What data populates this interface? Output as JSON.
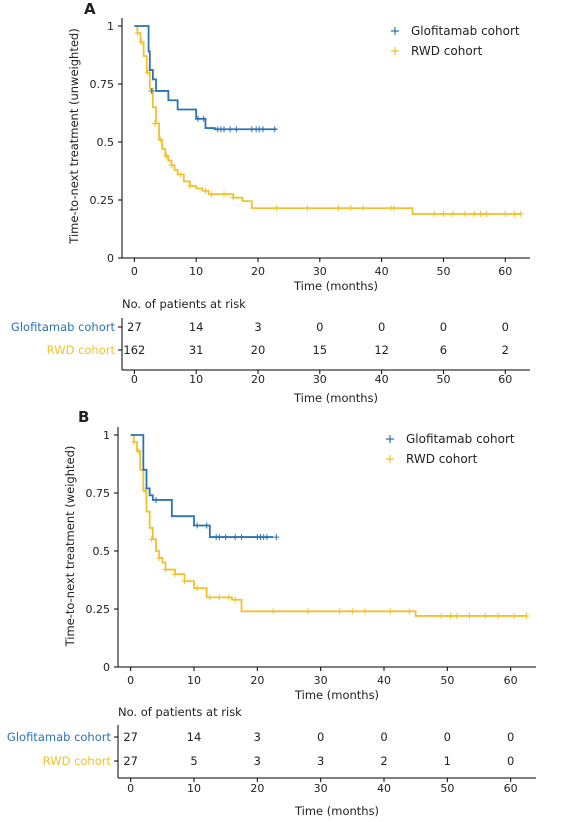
{
  "colors": {
    "glofitamab": "#2a73b5",
    "rwd": "#f2c12e",
    "axis": "#000000"
  },
  "chart_data": [
    {
      "type": "line",
      "panel_label": "A",
      "ylabel": "Time-to-next treatment (unweighted)",
      "xlabel": "Time (months)",
      "xlim": [
        -2,
        64
      ],
      "ylim": [
        0,
        1
      ],
      "x_ticks": [
        0,
        10,
        20,
        30,
        40,
        50,
        60
      ],
      "y_ticks": [
        0,
        0.25,
        0.5,
        0.75,
        1
      ],
      "y_tick_labels": [
        "0",
        "0.25",
        "0.5",
        "0.75",
        "1"
      ],
      "legend_position": "top-right",
      "series": [
        {
          "name": "Glofitamab cohort",
          "color": "#2a73b5",
          "x": [
            0,
            1.0,
            2.3,
            2.5,
            3.0,
            3.5,
            5.5,
            7.0,
            10.0,
            11.5,
            13.0,
            23.0
          ],
          "y": [
            1,
            1,
            0.89,
            0.81,
            0.77,
            0.72,
            0.68,
            0.64,
            0.6,
            0.56,
            0.555,
            0.555
          ],
          "censor_x": [
            2.8,
            10.3,
            11.2,
            13.5,
            14.0,
            14.5,
            15.5,
            16.5,
            19.0,
            19.7,
            20.2,
            20.8,
            22.7
          ],
          "censor_y": [
            0.72,
            0.6,
            0.6,
            0.555,
            0.555,
            0.555,
            0.555,
            0.555,
            0.555,
            0.555,
            0.555,
            0.555,
            0.555
          ]
        },
        {
          "name": "RWD cohort",
          "color": "#f2c12e",
          "x": [
            0,
            0.5,
            1.0,
            1.5,
            2.0,
            2.5,
            3.0,
            3.5,
            4.0,
            4.5,
            5.0,
            5.5,
            6.0,
            6.5,
            7.0,
            8.0,
            9.0,
            10.0,
            11.0,
            12.0,
            16.0,
            17.5,
            19.0,
            45.0,
            62.5
          ],
          "y": [
            1,
            0.97,
            0.93,
            0.87,
            0.8,
            0.73,
            0.65,
            0.58,
            0.51,
            0.47,
            0.44,
            0.42,
            0.4,
            0.38,
            0.36,
            0.33,
            0.31,
            0.3,
            0.29,
            0.275,
            0.26,
            0.245,
            0.215,
            0.19,
            0.19
          ],
          "censor_x": [
            0.5,
            1.2,
            2.2,
            3.3,
            4.2,
            5.2,
            6.0,
            7.5,
            9.0,
            11.5,
            12.5,
            14.5,
            16.0,
            23.0,
            28.0,
            33.0,
            35.0,
            37.0,
            41.5,
            42.0,
            48.5,
            50.0,
            51.5,
            53.5,
            55.0,
            56.0,
            57.0,
            60.0,
            61.5,
            62.5
          ],
          "censor_y": [
            0.97,
            0.93,
            0.8,
            0.58,
            0.51,
            0.44,
            0.4,
            0.36,
            0.31,
            0.29,
            0.275,
            0.275,
            0.26,
            0.215,
            0.215,
            0.215,
            0.215,
            0.215,
            0.215,
            0.215,
            0.19,
            0.19,
            0.19,
            0.19,
            0.19,
            0.19,
            0.19,
            0.19,
            0.19,
            0.19
          ]
        }
      ],
      "risk_table": {
        "title": "No. of patients at risk",
        "xlabel": "Time (months)",
        "times": [
          0,
          10,
          20,
          30,
          40,
          50,
          60
        ],
        "rows": [
          {
            "label": "Glofitamab cohort",
            "color": "#2a73b5",
            "values": [
              "27",
              "14",
              "3",
              "0",
              "0",
              "0",
              "0"
            ]
          },
          {
            "label": "RWD cohort",
            "color": "#f2c12e",
            "values": [
              "162",
              "31",
              "20",
              "15",
              "12",
              "6",
              "2"
            ]
          }
        ]
      }
    },
    {
      "type": "line",
      "panel_label": "B",
      "ylabel": "Time-to-next treatment (weighted)",
      "xlabel": "Time (months)",
      "xlim": [
        -2,
        64
      ],
      "ylim": [
        0,
        1
      ],
      "x_ticks": [
        0,
        10,
        20,
        30,
        40,
        50,
        60
      ],
      "y_ticks": [
        0,
        0.25,
        0.5,
        0.75,
        1
      ],
      "y_tick_labels": [
        "0",
        "0.25",
        "0.5",
        "0.75",
        "1"
      ],
      "legend_position": "top-right",
      "series": [
        {
          "name": "Glofitamab cohort",
          "color": "#2a73b5",
          "x": [
            0,
            1.3,
            2.0,
            2.5,
            3.0,
            3.5,
            6.5,
            10.0,
            12.5,
            22.5
          ],
          "y": [
            1,
            1,
            0.85,
            0.77,
            0.74,
            0.72,
            0.65,
            0.61,
            0.56,
            0.56
          ],
          "censor_x": [
            4.0,
            10.5,
            12.0,
            13.5,
            14.0,
            15.0,
            16.5,
            17.5,
            20.0,
            20.5,
            21.0,
            21.5,
            23.0
          ],
          "censor_y": [
            0.72,
            0.61,
            0.61,
            0.56,
            0.56,
            0.56,
            0.56,
            0.56,
            0.56,
            0.56,
            0.56,
            0.56,
            0.56
          ]
        },
        {
          "name": "RWD cohort",
          "color": "#f2c12e",
          "x": [
            0,
            0.5,
            1.0,
            1.5,
            2.0,
            2.5,
            3.0,
            3.5,
            4.0,
            4.5,
            5.0,
            5.5,
            7.0,
            8.5,
            10.0,
            12.0,
            16.0,
            17.5,
            45.0,
            62.5
          ],
          "y": [
            1,
            0.97,
            0.93,
            0.85,
            0.76,
            0.67,
            0.6,
            0.55,
            0.5,
            0.47,
            0.45,
            0.42,
            0.4,
            0.37,
            0.34,
            0.3,
            0.29,
            0.24,
            0.22,
            0.22
          ],
          "censor_x": [
            0.5,
            1.3,
            2.3,
            3.3,
            4.5,
            5.5,
            7.0,
            8.5,
            10.5,
            12.5,
            14.0,
            15.5,
            16.5,
            22.5,
            28.0,
            33.0,
            35.0,
            37.0,
            41.0,
            44.0,
            49.0,
            50.5,
            51.5,
            53.5,
            56.0,
            58.0,
            60.5,
            62.5
          ],
          "censor_y": [
            0.97,
            0.93,
            0.76,
            0.55,
            0.47,
            0.42,
            0.4,
            0.37,
            0.34,
            0.3,
            0.3,
            0.3,
            0.29,
            0.24,
            0.24,
            0.24,
            0.24,
            0.24,
            0.24,
            0.24,
            0.22,
            0.22,
            0.22,
            0.22,
            0.22,
            0.22,
            0.22,
            0.22
          ]
        }
      ],
      "risk_table": {
        "title": "No. of patients at risk",
        "xlabel": "Time (months)",
        "times": [
          0,
          10,
          20,
          30,
          40,
          50,
          60
        ],
        "rows": [
          {
            "label": "Glofitamab cohort",
            "color": "#2a73b5",
            "values": [
              "27",
              "14",
              "3",
              "0",
              "0",
              "0",
              "0"
            ]
          },
          {
            "label": "RWD cohort",
            "color": "#f2c12e",
            "values": [
              "27",
              "5",
              "3",
              "3",
              "2",
              "1",
              "0"
            ]
          }
        ]
      }
    }
  ]
}
